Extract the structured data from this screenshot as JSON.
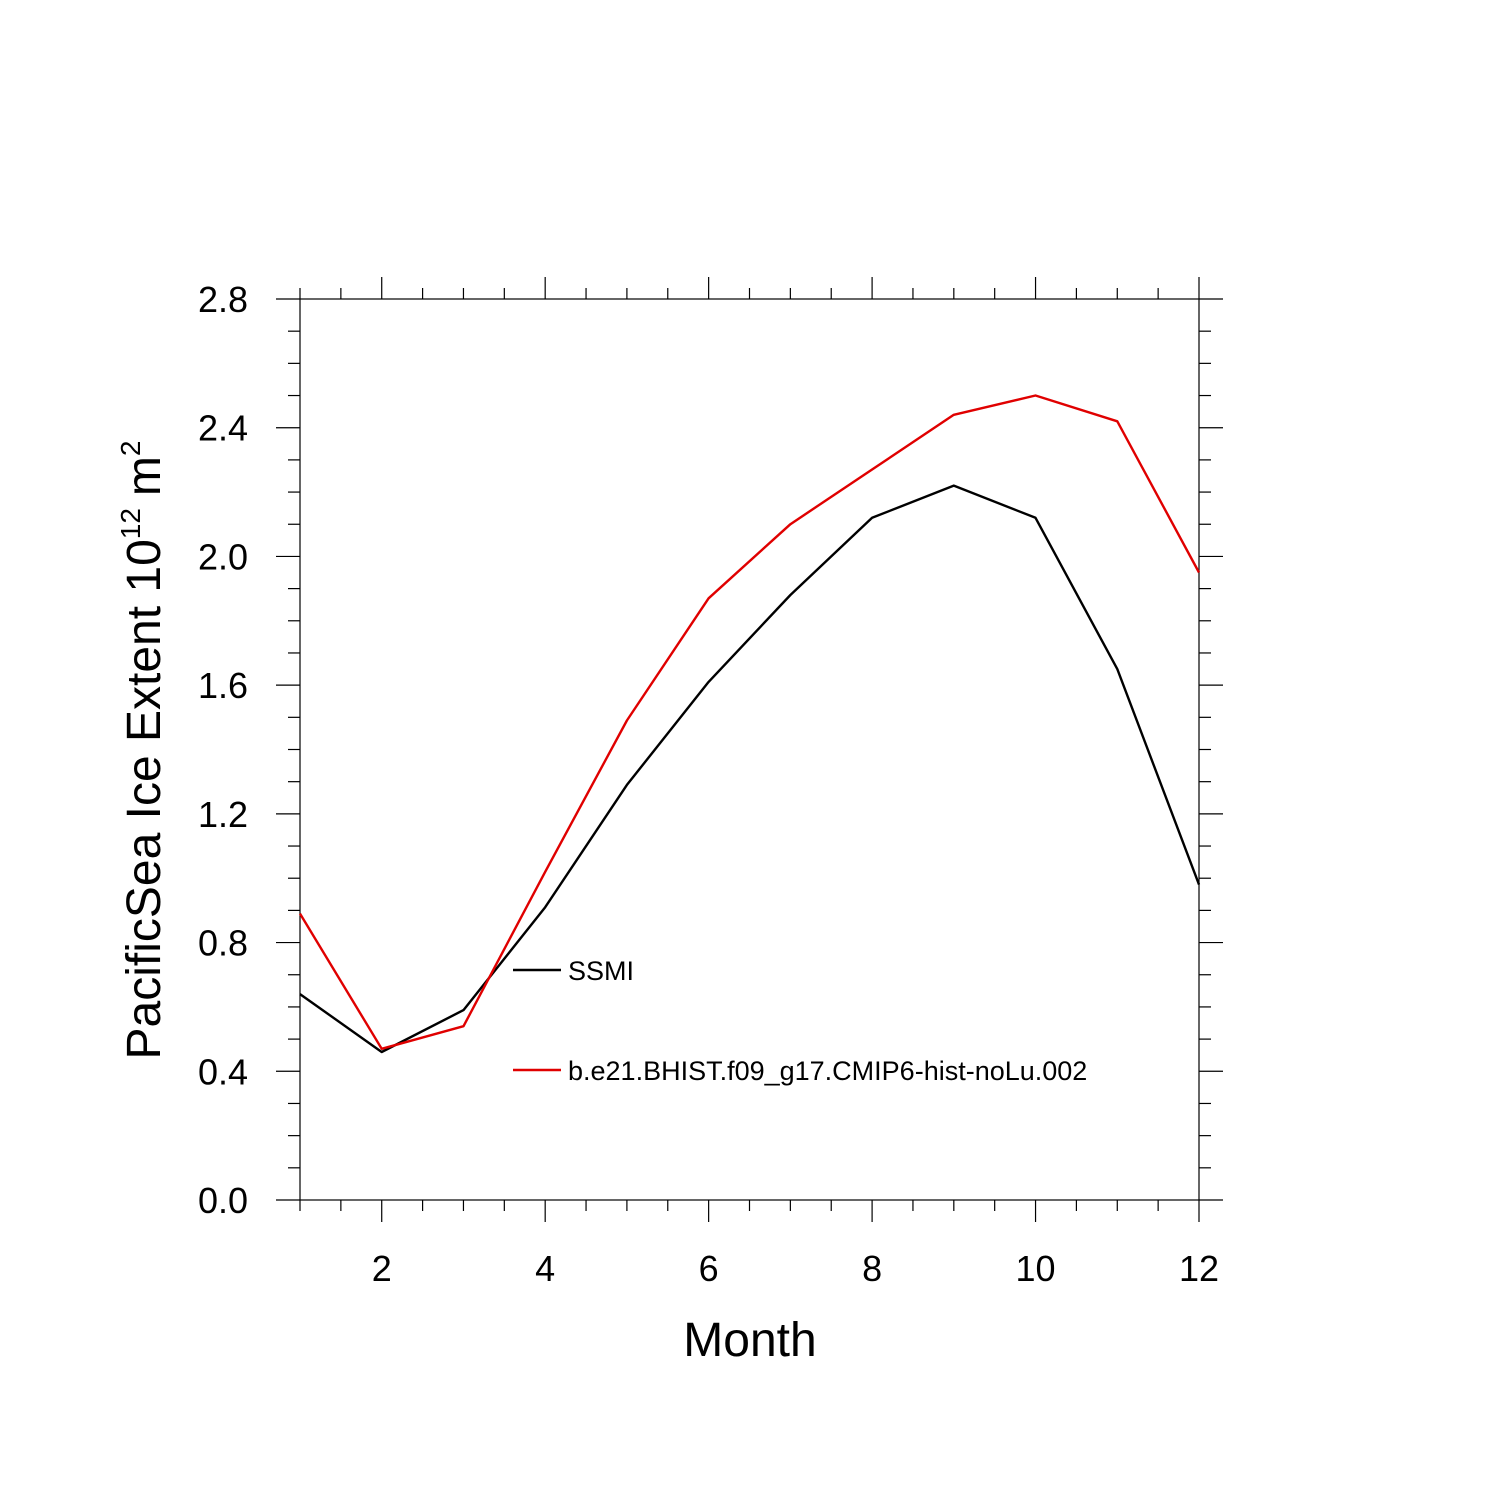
{
  "chart_data": {
    "type": "line",
    "title": "",
    "xlabel": "Month",
    "ylabel": "PacificSea Ice Extent 10",
    "ylabel_superscript": "12",
    "ylabel_unit": "m",
    "ylabel_unit_superscript": "2",
    "xlim": [
      1,
      12
    ],
    "ylim": [
      0.0,
      2.8
    ],
    "x_ticks": [
      2,
      4,
      6,
      8,
      10,
      12
    ],
    "x_tick_labels": [
      "2",
      "4",
      "6",
      "8",
      "10",
      "12"
    ],
    "y_ticks": [
      0.0,
      0.4,
      0.8,
      1.2,
      1.6,
      2.0,
      2.4,
      2.8
    ],
    "y_tick_labels": [
      "0.0",
      "0.4",
      "0.8",
      "1.2",
      "1.6",
      "2.0",
      "2.4",
      "2.8"
    ],
    "grid": false,
    "legend_position": "inside lower-middle",
    "x": [
      1,
      2,
      3,
      4,
      5,
      6,
      7,
      8,
      9,
      10,
      11,
      12
    ],
    "series": [
      {
        "name": "SSMI",
        "color": "#000000",
        "values": [
          0.64,
          0.46,
          0.59,
          0.91,
          1.29,
          1.61,
          1.88,
          2.12,
          2.22,
          2.12,
          1.65,
          0.98
        ]
      },
      {
        "name": "b.e21.BHIST.f09_g17.CMIP6-hist-noLu.002",
        "color": "#e00000",
        "values": [
          0.89,
          0.47,
          0.54,
          1.02,
          1.49,
          1.87,
          2.1,
          2.27,
          2.44,
          2.5,
          2.42,
          1.95
        ]
      }
    ]
  }
}
